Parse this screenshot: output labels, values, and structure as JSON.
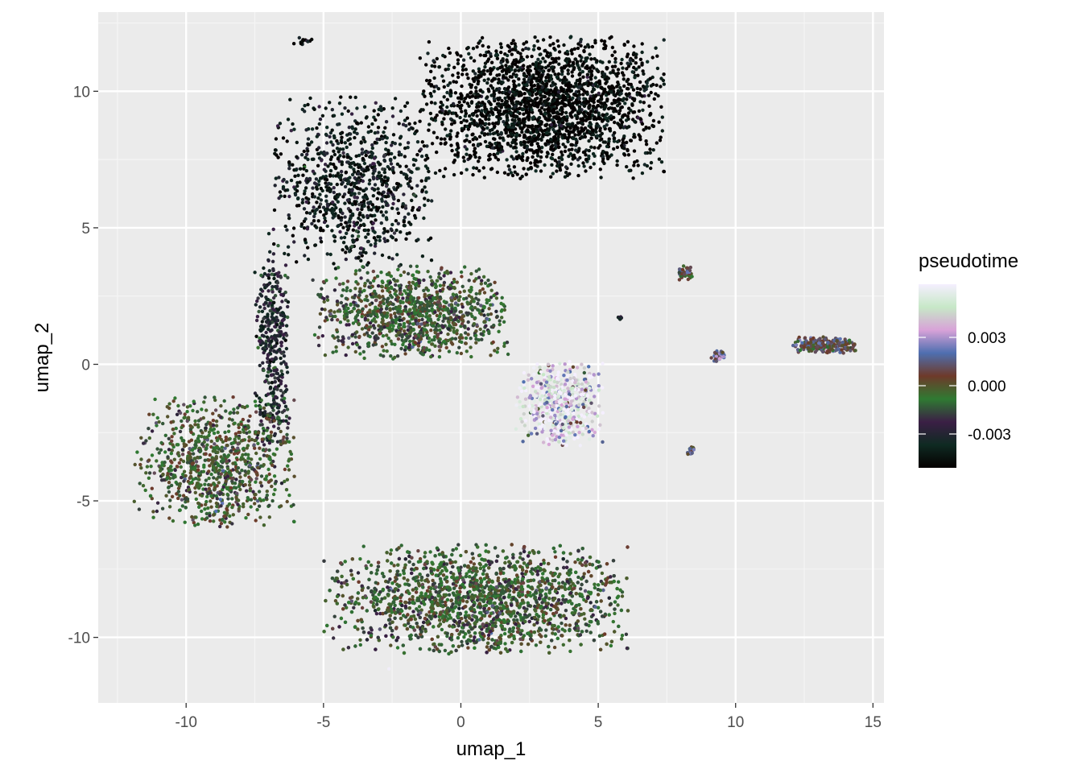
{
  "chart_data": {
    "type": "scatter",
    "title": "",
    "xlabel": "umap_1",
    "ylabel": "umap_2",
    "xlim": [
      -13.2,
      15.4
    ],
    "ylim": [
      -12.4,
      12.9
    ],
    "grid": true,
    "x_ticks": [
      -10,
      -5,
      0,
      5,
      10,
      15
    ],
    "x_tick_labels": [
      "-10",
      "-5",
      "0",
      "5",
      "10",
      "15"
    ],
    "y_ticks": [
      -10,
      -5,
      0,
      5,
      10
    ],
    "y_tick_labels": [
      "-10",
      "-5",
      "0",
      "5",
      "10"
    ],
    "legend": {
      "title": "pseudotime",
      "placement": "right",
      "type": "colorbar",
      "range": [
        -0.0051,
        0.0063
      ],
      "ticks": [
        -0.003,
        0.0,
        0.003
      ],
      "tick_labels": [
        "-0.003",
        "0.000",
        "0.003"
      ],
      "colormap": [
        "#050000",
        "#0f2a22",
        "#3b1f45",
        "#2f7a32",
        "#6e3a2a",
        "#4e6fb0",
        "#d8a2d8",
        "#c7e8c7",
        "#f5efff"
      ]
    },
    "clusters": [
      {
        "desc": "top dense cluster",
        "x_range": [
          -1.5,
          7.5
        ],
        "y_range": [
          6.8,
          12.0
        ],
        "pseudotime_mean": -0.0049,
        "n_points": 2200
      },
      {
        "desc": "upper arm",
        "x_range": [
          -7.0,
          -1.0
        ],
        "y_range": [
          3.5,
          9.8
        ],
        "pseudotime_mean": -0.004,
        "n_points": 900
      },
      {
        "desc": "stem",
        "x_range": [
          -7.5,
          -6.2
        ],
        "y_range": [
          -3.0,
          4.5
        ],
        "pseudotime_mean": -0.0028,
        "n_points": 400
      },
      {
        "desc": "left loop",
        "x_range": [
          -11.9,
          -6.0
        ],
        "y_range": [
          -6.0,
          -1.2
        ],
        "pseudotime_mean": -0.0005,
        "n_points": 900
      },
      {
        "desc": "bottom band",
        "x_range": [
          -5.0,
          6.2
        ],
        "y_range": [
          -10.6,
          -6.6
        ],
        "pseudotime_mean": -0.0008,
        "n_points": 2800
      },
      {
        "desc": "middle band",
        "x_range": [
          -5.4,
          1.8
        ],
        "y_range": [
          0.2,
          3.6
        ],
        "pseudotime_mean": -0.0008,
        "n_points": 1100
      },
      {
        "desc": "center blob",
        "x_range": [
          2.0,
          5.2
        ],
        "y_range": [
          -3.0,
          0.1
        ],
        "pseudotime_mean": 0.0048,
        "n_points": 550
      },
      {
        "desc": "right elongated cluster",
        "x_range": [
          12.0,
          14.4
        ],
        "y_range": [
          0.4,
          1.0
        ],
        "pseudotime_mean": 0.0008,
        "n_points": 220
      },
      {
        "desc": "small cluster 1",
        "x_range": [
          7.8,
          8.5
        ],
        "y_range": [
          3.0,
          3.6
        ],
        "pseudotime_mean": 0.0005,
        "n_points": 40
      },
      {
        "desc": "small cluster 2",
        "x_range": [
          9.1,
          9.6
        ],
        "y_range": [
          0.1,
          0.5
        ],
        "pseudotime_mean": 0.0018,
        "n_points": 40
      },
      {
        "desc": "small cluster 3",
        "x_range": [
          8.2,
          8.5
        ],
        "y_range": [
          -3.4,
          -3.0
        ],
        "pseudotime_mean": 0.0012,
        "n_points": 20
      },
      {
        "desc": "small cluster 4",
        "x_range": [
          5.7,
          5.9
        ],
        "y_range": [
          1.6,
          1.8
        ],
        "pseudotime_mean": -0.003,
        "n_points": 10
      },
      {
        "desc": "tiny top-left cluster",
        "x_range": [
          -6.1,
          -5.4
        ],
        "y_range": [
          11.7,
          12.0
        ],
        "pseudotime_mean": -0.0045,
        "n_points": 15
      },
      {
        "desc": "outlier",
        "x_range": [
          -2.7,
          -2.6
        ],
        "y_range": [
          -11.2,
          -11.1
        ],
        "pseudotime_mean": 0.004,
        "n_points": 1
      }
    ]
  }
}
